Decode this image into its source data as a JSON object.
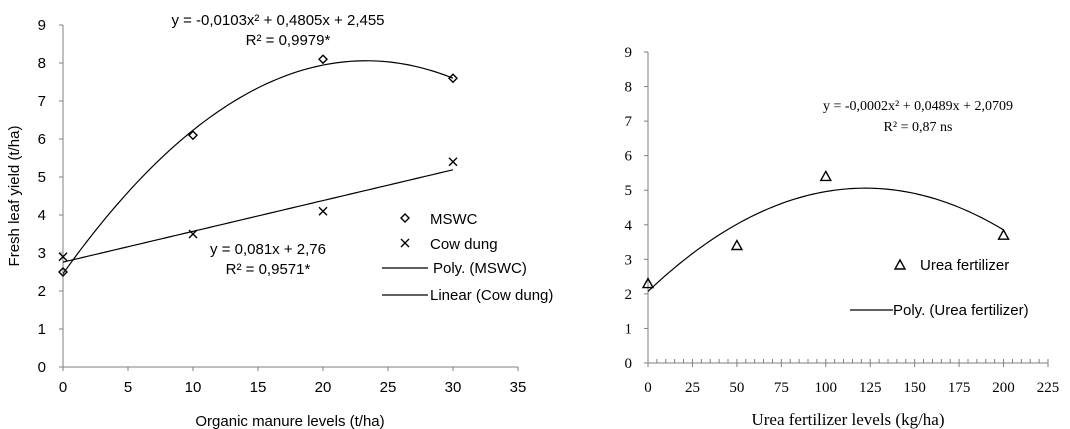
{
  "chart_data": [
    {
      "type": "scatter",
      "xlabel": "Organic manure levels (t/ha)",
      "ylabel": "Fresh leaf yield (t/ha)",
      "xlim": [
        0,
        35
      ],
      "ylim": [
        0,
        9
      ],
      "xticks": [
        "0",
        "5",
        "10",
        "15",
        "20",
        "25",
        "30",
        "35"
      ],
      "yticks": [
        "0",
        "1",
        "2",
        "3",
        "4",
        "5",
        "6",
        "7",
        "8",
        "9"
      ],
      "grid": false,
      "legend_position": "right",
      "series": [
        {
          "name": "MSWC",
          "marker": "diamond",
          "x": [
            0,
            10,
            20,
            30
          ],
          "y": [
            2.5,
            6.1,
            8.1,
            7.6
          ]
        },
        {
          "name": "Cow dung",
          "marker": "x",
          "x": [
            0,
            10,
            20,
            30
          ],
          "y": [
            2.9,
            3.5,
            4.1,
            5.4
          ]
        }
      ],
      "trendlines": [
        {
          "name": "Poly. (MSWC)",
          "kind": "poly2",
          "coefficients": [
            -0.0103,
            0.4805,
            2.455
          ],
          "x_range": [
            0,
            30
          ]
        },
        {
          "name": "Linear (Cow dung)",
          "kind": "linear",
          "coefficients": [
            0.081,
            2.76
          ],
          "x_range": [
            0,
            30
          ]
        }
      ],
      "annotations": [
        {
          "id": "mswc_eq",
          "text": "y = -0,0103x² + 0,4805x + 2,455"
        },
        {
          "id": "mswc_r2",
          "text": "R² = 0,9979*"
        },
        {
          "id": "cow_eq",
          "text": "y = 0,081x + 2,76"
        },
        {
          "id": "cow_r2",
          "text": "R² = 0,9571*"
        }
      ]
    },
    {
      "type": "scatter",
      "xlabel": "Urea fertilizer levels (kg/ha)",
      "ylabel": "",
      "xlim": [
        0,
        225
      ],
      "ylim": [
        0,
        9
      ],
      "xticks": [
        "0",
        "25",
        "50",
        "75",
        "100",
        "125",
        "150",
        "175",
        "200",
        "225"
      ],
      "yticks": [
        "0",
        "1",
        "2",
        "3",
        "4",
        "5",
        "6",
        "7",
        "8",
        "9"
      ],
      "grid": false,
      "legend_position": "right",
      "series": [
        {
          "name": "Urea fertilizer",
          "marker": "triangle",
          "x": [
            0,
            50,
            100,
            200
          ],
          "y": [
            2.3,
            3.4,
            5.4,
            3.7
          ]
        }
      ],
      "trendlines": [
        {
          "name": "Poly. (Urea fertilizer)",
          "kind": "poly2",
          "coefficients": [
            -0.0002,
            0.0489,
            2.0709
          ],
          "x_range": [
            0,
            200
          ]
        }
      ],
      "annotations": [
        {
          "id": "urea_eq",
          "text": "y = -0,0002x² + 0,0489x + 2,0709"
        },
        {
          "id": "urea_r2",
          "text": "R² = 0,87 ns"
        }
      ]
    }
  ]
}
